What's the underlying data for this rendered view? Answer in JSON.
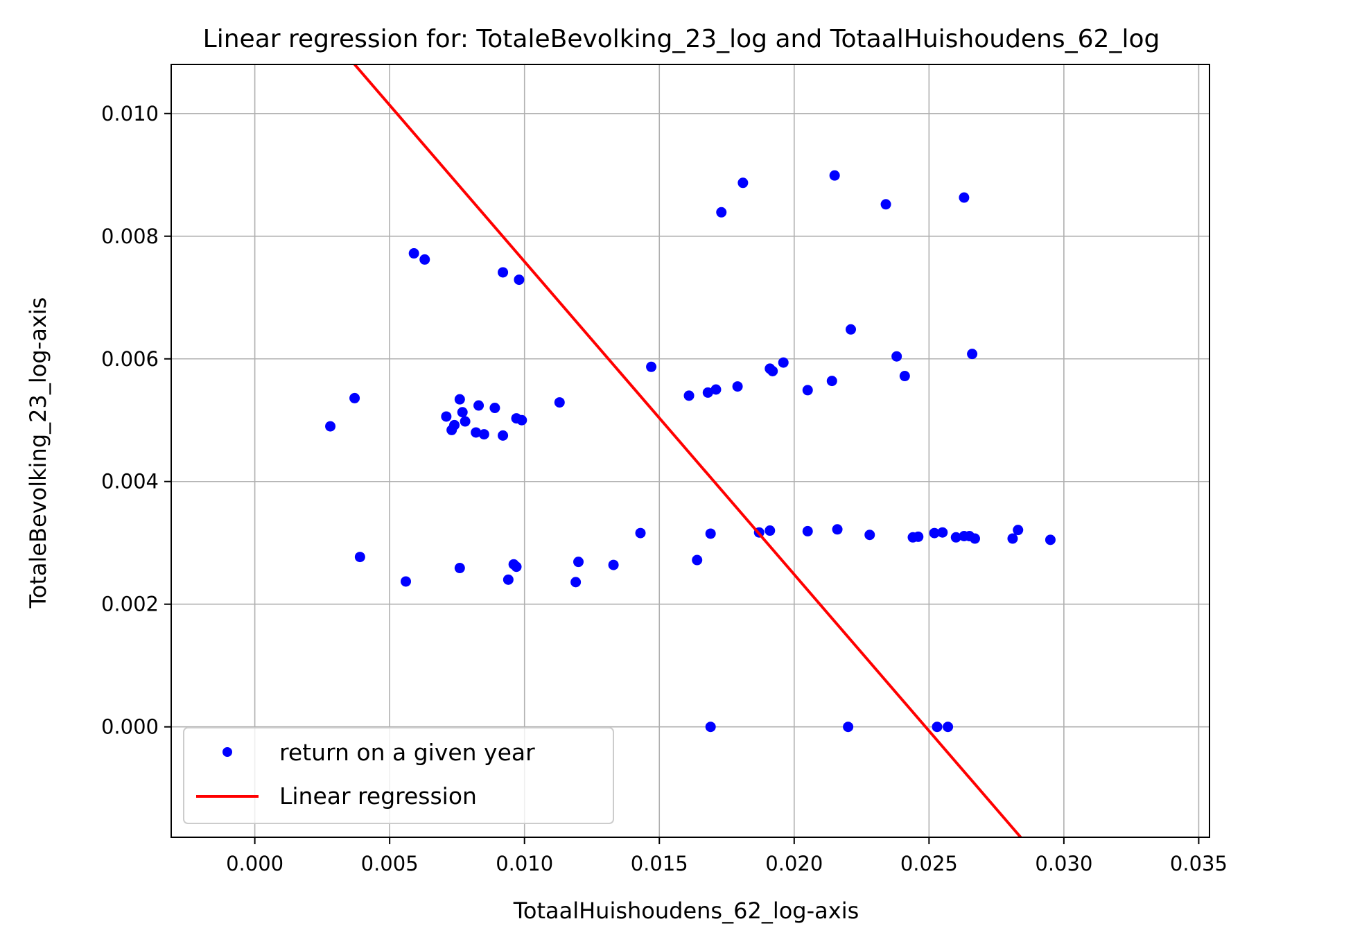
{
  "chart_data": {
    "type": "scatter",
    "title": "Linear regression for: TotaleBevolking_23_log and TotaalHuishoudens_62_log",
    "xlabel": "TotaalHuishoudens_62_log-axis",
    "ylabel": "TotaleBevolking_23_log-axis",
    "xlim": [
      -0.0031,
      0.0354
    ],
    "ylim": [
      -0.0018,
      0.0108
    ],
    "xticks": [
      0.0,
      0.005,
      0.01,
      0.015,
      0.02,
      0.025,
      0.03,
      0.035
    ],
    "xtick_labels": [
      "0.000",
      "0.005",
      "0.010",
      "0.015",
      "0.020",
      "0.025",
      "0.030",
      "0.035"
    ],
    "yticks": [
      0.0,
      0.002,
      0.004,
      0.006,
      0.008,
      0.01
    ],
    "ytick_labels": [
      "0.000",
      "0.002",
      "0.004",
      "0.006",
      "0.008",
      "0.010"
    ],
    "grid": true,
    "legend_position": "lower-left",
    "series": [
      {
        "name": "return on a given year",
        "kind": "scatter",
        "color": "#0000ff",
        "points": [
          [
            0.0028,
            0.0049
          ],
          [
            0.0037,
            0.00536
          ],
          [
            0.0039,
            0.00277
          ],
          [
            0.0059,
            0.00772
          ],
          [
            0.0063,
            0.00762
          ],
          [
            0.0056,
            0.00237
          ],
          [
            0.0071,
            0.00506
          ],
          [
            0.0073,
            0.00484
          ],
          [
            0.0074,
            0.00492
          ],
          [
            0.0076,
            0.00534
          ],
          [
            0.0077,
            0.00513
          ],
          [
            0.0078,
            0.00498
          ],
          [
            0.0082,
            0.0048
          ],
          [
            0.0083,
            0.00524
          ],
          [
            0.0085,
            0.00477
          ],
          [
            0.0089,
            0.0052
          ],
          [
            0.0092,
            0.00475
          ],
          [
            0.0092,
            0.00741
          ],
          [
            0.0098,
            0.00729
          ],
          [
            0.0097,
            0.00503
          ],
          [
            0.0099,
            0.005
          ],
          [
            0.0076,
            0.00259
          ],
          [
            0.0094,
            0.0024
          ],
          [
            0.0096,
            0.00265
          ],
          [
            0.0097,
            0.00261
          ],
          [
            0.0113,
            0.00529
          ],
          [
            0.0119,
            0.00236
          ],
          [
            0.012,
            0.00269
          ],
          [
            0.0133,
            0.00264
          ],
          [
            0.0143,
            0.00316
          ],
          [
            0.0147,
            0.00587
          ],
          [
            0.0161,
            0.0054
          ],
          [
            0.0164,
            0.00272
          ],
          [
            0.0168,
            0.00545
          ],
          [
            0.0169,
            0.00315
          ],
          [
            0.0169,
            0.0
          ],
          [
            0.0171,
            0.0055
          ],
          [
            0.0173,
            0.00839
          ],
          [
            0.0179,
            0.00555
          ],
          [
            0.0181,
            0.00887
          ],
          [
            0.0187,
            0.00317
          ],
          [
            0.0191,
            0.0032
          ],
          [
            0.0191,
            0.00584
          ],
          [
            0.0192,
            0.0058
          ],
          [
            0.0196,
            0.00594
          ],
          [
            0.0205,
            0.00549
          ],
          [
            0.0205,
            0.00319
          ],
          [
            0.0214,
            0.00564
          ],
          [
            0.0215,
            0.00899
          ],
          [
            0.0216,
            0.00322
          ],
          [
            0.022,
            0.0
          ],
          [
            0.0221,
            0.00648
          ],
          [
            0.0228,
            0.00313
          ],
          [
            0.0234,
            0.00852
          ],
          [
            0.0238,
            0.00604
          ],
          [
            0.0241,
            0.00572
          ],
          [
            0.0244,
            0.00309
          ],
          [
            0.0246,
            0.0031
          ],
          [
            0.0252,
            0.00316
          ],
          [
            0.0253,
            0.0
          ],
          [
            0.0255,
            0.00317
          ],
          [
            0.0257,
            0.0
          ],
          [
            0.026,
            0.00309
          ],
          [
            0.0263,
            0.00311
          ],
          [
            0.0263,
            0.00863
          ],
          [
            0.0265,
            0.00311
          ],
          [
            0.0266,
            0.00608
          ],
          [
            0.0267,
            0.00307
          ],
          [
            0.0281,
            0.00307
          ],
          [
            0.0283,
            0.00321
          ],
          [
            0.0295,
            0.00305
          ]
        ]
      },
      {
        "name": "Linear regression",
        "kind": "line",
        "color": "#ff0000",
        "points": [
          [
            0.0037,
            0.0108
          ],
          [
            0.0284,
            -0.0018
          ]
        ]
      }
    ]
  }
}
